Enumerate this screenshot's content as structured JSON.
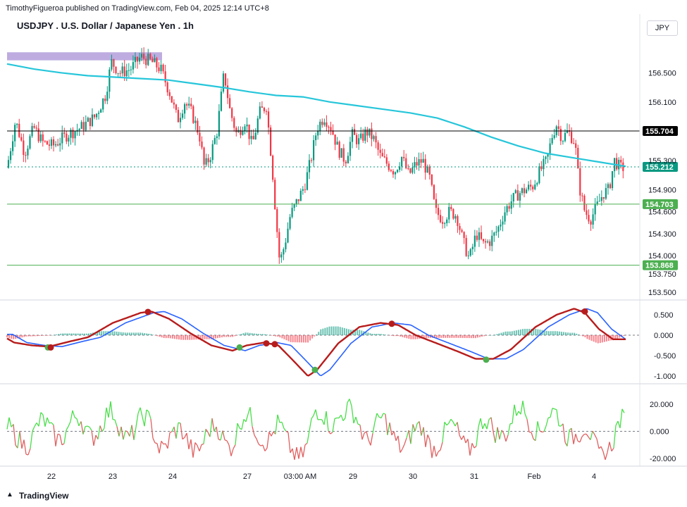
{
  "header": {
    "published_line": "TimothyFigueroa published on TradingView.com, Feb 04, 2025 12:14 UTC+8",
    "title": "USDJPY . U.S. Dollar / Japanese Yen . 1h",
    "currency_button": "JPY"
  },
  "footer": {
    "brand": "TradingView"
  },
  "colors": {
    "up": "#089981",
    "down": "#f23645",
    "ema": "#26c6da",
    "macd_line": "#4caf50",
    "signal_line": "#2962ff",
    "macd_down": "#b71c1c",
    "zone": "#b39ddb",
    "support": "#4caf50",
    "resistance": "#000000"
  },
  "chart_data": [
    {
      "type": "candlestick",
      "name": "price",
      "x_ticks": [
        "22",
        "23",
        "24",
        "27",
        "03:00 AM",
        "29",
        "30",
        "31",
        "Feb",
        "4"
      ],
      "y_ticks": [
        "156.500",
        "156.100",
        "155.300",
        "154.900",
        "154.600",
        "154.300",
        "154.000",
        "153.750",
        "153.500"
      ],
      "ylim": [
        153.4,
        156.85
      ],
      "moving_average_approx": [
        156.62,
        156.55,
        156.5,
        156.46,
        156.44,
        156.42,
        156.4,
        156.35,
        156.3,
        156.24,
        156.19,
        156.17,
        156.1,
        156.05,
        156.0,
        155.95,
        155.88,
        155.76,
        155.62,
        155.5,
        155.4,
        155.34,
        155.28,
        155.22
      ],
      "horizontal_levels": [
        {
          "value": 155.704,
          "label": "155.704",
          "style": "black"
        },
        {
          "value": 155.212,
          "label": "155.212",
          "style": "green"
        },
        {
          "value": 154.703,
          "label": "154.703",
          "style": "green"
        },
        {
          "value": 153.868,
          "label": "153.868",
          "style": "green"
        }
      ],
      "zone": {
        "from": 156.67,
        "to": 156.78
      }
    },
    {
      "type": "macd",
      "y_ticks": [
        "0.500",
        "0.000",
        "-0.500",
        "-1.000"
      ],
      "ylim": [
        -1.15,
        0.75
      ],
      "zero_line": 0
    },
    {
      "type": "oscillator",
      "y_ticks": [
        "20.000",
        "0.000",
        "-20.000"
      ],
      "ylim": [
        -25,
        29
      ],
      "zero_line": 0
    }
  ]
}
